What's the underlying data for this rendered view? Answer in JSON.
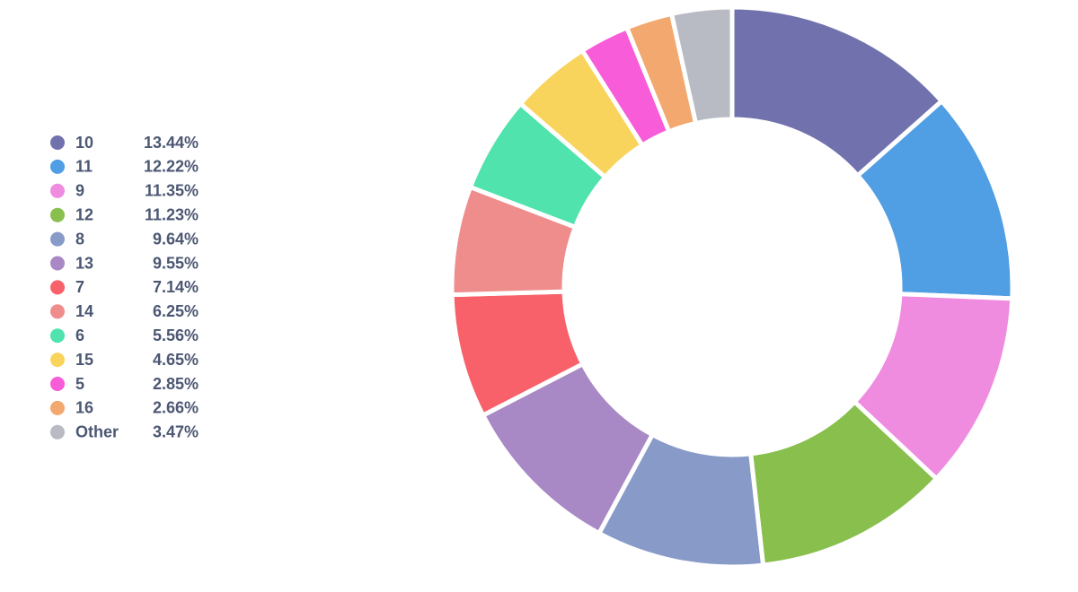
{
  "chart_data": {
    "type": "pie",
    "donut": true,
    "categories": [
      "10",
      "11",
      "9",
      "12",
      "8",
      "13",
      "7",
      "14",
      "6",
      "15",
      "5",
      "16",
      "Other"
    ],
    "values": [
      13.44,
      12.22,
      11.35,
      11.23,
      9.64,
      9.55,
      7.14,
      6.25,
      5.56,
      4.65,
      2.85,
      2.66,
      3.47
    ],
    "value_labels": [
      "13.44%",
      "12.22%",
      "11.35%",
      "11.23%",
      "9.64%",
      "9.55%",
      "7.14%",
      "6.25%",
      "5.56%",
      "4.65%",
      "2.85%",
      "2.66%",
      "3.47%"
    ],
    "colors": [
      "#7172ad",
      "#509ee3",
      "#ef8ce0",
      "#88bf4d",
      "#889ac8",
      "#a989c5",
      "#f9616a",
      "#ef8c8c",
      "#50e3ad",
      "#f9d45c",
      "#f85cd8",
      "#f2a86f",
      "#b8bbc3"
    ],
    "legend": "left"
  }
}
